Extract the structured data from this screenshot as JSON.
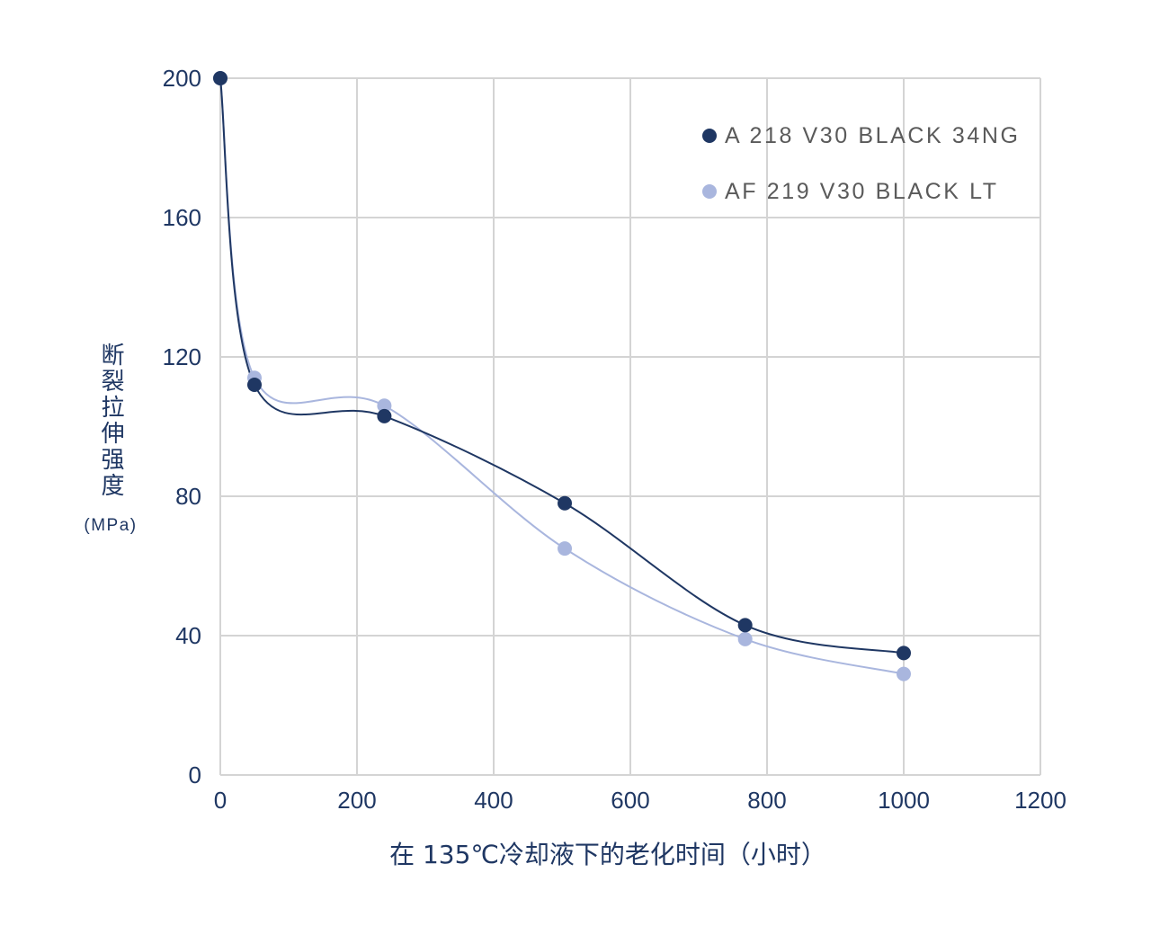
{
  "chart_data": {
    "type": "line",
    "smooth": true,
    "markers": true,
    "xlabel": "在 135℃冷却液下的老化时间（小时）",
    "ylabel": "断裂拉伸强度",
    "ylabel_unit": "(MPa)",
    "xlim": [
      0,
      1200
    ],
    "ylim": [
      0,
      200
    ],
    "xticks": [
      0,
      200,
      400,
      600,
      800,
      1000,
      1200
    ],
    "yticks": [
      0,
      40,
      80,
      120,
      160,
      200
    ],
    "grid": true,
    "legend": "top-right",
    "series": [
      {
        "name": "A 218 V30 BLACK 34NG",
        "color": "#1f3763",
        "x": [
          0,
          50,
          240,
          504,
          768,
          1000
        ],
        "y": [
          200,
          112,
          103,
          78,
          43,
          35
        ]
      },
      {
        "name": "AF 219 V30 BLACK LT",
        "color": "#a9b6de",
        "x": [
          0,
          50,
          240,
          504,
          768,
          1000
        ],
        "y": [
          200,
          114,
          106,
          65,
          39,
          29
        ]
      }
    ]
  },
  "colors": {
    "axis_text": "#1f3763",
    "legend_text": "#5a5a5a",
    "grid": "#d4d4d4"
  }
}
